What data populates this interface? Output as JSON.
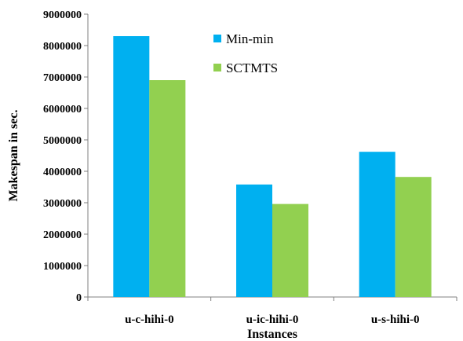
{
  "chart_data": {
    "type": "bar",
    "title": "",
    "xlabel": "Instances",
    "ylabel": "Makespan in sec.",
    "categories": [
      "u-c-hihi-0",
      "u-ic-hihi-0",
      "u-s-hihi-0"
    ],
    "series": [
      {
        "name": "Min-min",
        "color": "#00b0f0",
        "values": [
          8300000,
          3580000,
          4620000
        ]
      },
      {
        "name": "SCTMTS",
        "color": "#92d050",
        "values": [
          6900000,
          2960000,
          3820000
        ]
      }
    ],
    "ylim": [
      0,
      9000000
    ],
    "yticks": [
      0,
      1000000,
      2000000,
      3000000,
      4000000,
      5000000,
      6000000,
      7000000,
      8000000,
      9000000
    ],
    "ytick_labels": [
      "0",
      "1000000",
      "2000000",
      "3000000",
      "4000000",
      "5000000",
      "6000000",
      "7000000",
      "8000000",
      "9000000"
    ],
    "grid": false,
    "legend_position": "top-right"
  }
}
